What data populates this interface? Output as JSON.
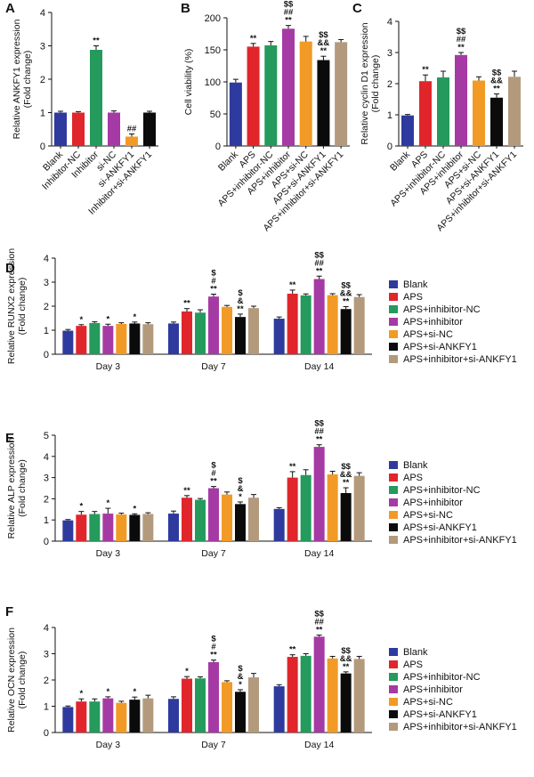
{
  "colors": {
    "Blank": "#2e3a9e",
    "APS": "#e0262b",
    "APS+inhibitor-NC": "#249a5c",
    "APS+inhibitor": "#a63aa5",
    "APS+si-NC": "#f29a26",
    "APS+si-ANKFY1": "#0b0b0b",
    "APS+inhibitor+si-ANKFY1": "#b39a7c",
    "Inhibitor-NC": "#e0262b",
    "Inhibitor": "#249a5c",
    "si-NC": "#a63aa5",
    "si-ANKFY1": "#f29a26",
    "Inhibitor+si-ANKFY1": "#0b0b0b"
  },
  "chart_data": [
    {
      "id": "A",
      "type": "bar",
      "panel_label": "A",
      "ylabel": [
        "Relative ANKFY1 expression",
        "(Fold change)"
      ],
      "ylim": [
        0,
        4
      ],
      "yticks": [
        "0",
        "1",
        "2",
        "3",
        "4"
      ],
      "categories": [
        "Blank",
        "Inhibitor-NC",
        "Inhibitor",
        "si-NC",
        "si-ANKFY1",
        "Inhibitor+si-ANKFY1"
      ],
      "values": [
        1.0,
        1.0,
        2.88,
        1.0,
        0.28,
        1.0
      ],
      "errors": [
        0.04,
        0.03,
        0.12,
        0.05,
        0.08,
        0.04
      ],
      "annotations": [
        "",
        "",
        "**",
        "",
        "##",
        ""
      ]
    },
    {
      "id": "B",
      "type": "bar",
      "panel_label": "B",
      "ylabel": [
        "Cell viability (%)"
      ],
      "ylim": [
        0,
        200
      ],
      "yticks": [
        "0",
        "50",
        "100",
        "150",
        "200"
      ],
      "categories": [
        "Blank",
        "APS",
        "APS+inhibitor-NC",
        "APS+inhibitor",
        "APS+si-NC",
        "APS+si-ANKFY1",
        "APS+inhibitor+si-ANKFY1"
      ],
      "values": [
        99,
        155,
        157,
        183,
        163,
        134,
        162
      ],
      "errors": [
        5,
        5,
        6,
        5,
        8,
        6,
        4
      ],
      "annotations": [
        "",
        "**",
        "",
        "$$\n##\n**",
        "",
        "$$\n&&\n**",
        ""
      ]
    },
    {
      "id": "C",
      "type": "bar",
      "panel_label": "C",
      "ylabel": [
        "Relative cyclin D1 expression",
        "(Fold change)"
      ],
      "ylim": [
        0,
        4
      ],
      "yticks": [
        "0",
        "1",
        "2",
        "3",
        "4"
      ],
      "categories": [
        "Blank",
        "APS",
        "APS+inhibitor-NC",
        "APS+inhibitor",
        "APS+si-NC",
        "APS+si-ANKFY1",
        "APS+inhibitor+si-ANKFY1"
      ],
      "values": [
        0.98,
        2.08,
        2.2,
        2.92,
        2.1,
        1.55,
        2.22
      ],
      "errors": [
        0.03,
        0.2,
        0.2,
        0.08,
        0.12,
        0.12,
        0.18
      ],
      "annotations": [
        "",
        "**",
        "",
        "$$\n##\n**",
        "",
        "$$\n&&\n**",
        ""
      ]
    },
    {
      "id": "D",
      "type": "bar",
      "panel_label": "D",
      "ylabel": [
        "Relative RUNX2 expression",
        "(Fold change)"
      ],
      "ylim": [
        0,
        4
      ],
      "yticks": [
        "0",
        "1",
        "2",
        "3",
        "4"
      ],
      "groups": [
        "Day 3",
        "Day 7",
        "Day 14"
      ],
      "series": [
        {
          "name": "Blank",
          "values": [
            0.98,
            1.28,
            1.48
          ],
          "errors": [
            0.05,
            0.06,
            0.07
          ],
          "annotations": [
            "",
            "",
            ""
          ]
        },
        {
          "name": "APS",
          "values": [
            1.18,
            1.78,
            2.52
          ],
          "errors": [
            0.05,
            0.12,
            0.15
          ],
          "annotations": [
            "*",
            "**",
            "**"
          ]
        },
        {
          "name": "APS+inhibitor-NC",
          "values": [
            1.3,
            1.73,
            2.45
          ],
          "errors": [
            0.05,
            0.12,
            0.06
          ],
          "annotations": [
            "",
            "",
            ""
          ]
        },
        {
          "name": "APS+inhibitor",
          "values": [
            1.18,
            2.4,
            3.13
          ],
          "errors": [
            0.07,
            0.1,
            0.12
          ],
          "annotations": [
            "*",
            "$\n#\n**",
            "$$\n##\n**"
          ]
        },
        {
          "name": "APS+si-NC",
          "values": [
            1.26,
            1.97,
            2.46
          ],
          "errors": [
            0.05,
            0.06,
            0.06
          ],
          "annotations": [
            "",
            "",
            ""
          ]
        },
        {
          "name": "APS+si-ANKFY1",
          "values": [
            1.28,
            1.55,
            1.88
          ],
          "errors": [
            0.06,
            0.12,
            0.1
          ],
          "annotations": [
            "*",
            "$\n&\n**",
            "$$\n&&\n**"
          ]
        },
        {
          "name": "APS+inhibitor+si-ANKFY1",
          "values": [
            1.25,
            1.92,
            2.38
          ],
          "errors": [
            0.06,
            0.08,
            0.1
          ],
          "annotations": [
            "",
            "",
            ""
          ]
        }
      ],
      "legend": [
        "Blank",
        "APS",
        "APS+inhibitor-NC",
        "APS+inhibitor",
        "APS+si-NC",
        "APS+si-ANKFY1",
        "APS+inhibitor+si-ANKFY1"
      ]
    },
    {
      "id": "E",
      "type": "bar",
      "panel_label": "E",
      "ylabel": [
        "Relative ALP expression",
        "(Fold change)"
      ],
      "ylim": [
        0,
        5
      ],
      "yticks": [
        "0",
        "1",
        "2",
        "3",
        "4",
        "5"
      ],
      "groups": [
        "Day 3",
        "Day 7",
        "Day 14"
      ],
      "series": [
        {
          "name": "Blank",
          "values": [
            0.98,
            1.3,
            1.52
          ],
          "errors": [
            0.04,
            0.12,
            0.06
          ],
          "annotations": [
            "",
            "",
            ""
          ]
        },
        {
          "name": "APS",
          "values": [
            1.25,
            2.05,
            3.0
          ],
          "errors": [
            0.15,
            0.1,
            0.28
          ],
          "annotations": [
            "*",
            "**",
            "**"
          ]
        },
        {
          "name": "APS+inhibitor-NC",
          "values": [
            1.28,
            1.95,
            3.12
          ],
          "errors": [
            0.12,
            0.06,
            0.25
          ],
          "annotations": [
            "",
            "",
            ""
          ]
        },
        {
          "name": "APS+inhibitor",
          "values": [
            1.3,
            2.5,
            4.45
          ],
          "errors": [
            0.25,
            0.08,
            0.1
          ],
          "annotations": [
            "*",
            "$\n#\n**",
            "$$\n##\n**"
          ]
        },
        {
          "name": "APS+si-NC",
          "values": [
            1.26,
            2.2,
            3.15
          ],
          "errors": [
            0.06,
            0.12,
            0.15
          ],
          "annotations": [
            "",
            "",
            ""
          ]
        },
        {
          "name": "APS+si-ANKFY1",
          "values": [
            1.24,
            1.75,
            2.27
          ],
          "errors": [
            0.05,
            0.1,
            0.25
          ],
          "annotations": [
            "*",
            "$\n&\n*",
            "$$\n&&\n**"
          ]
        },
        {
          "name": "APS+inhibitor+si-ANKFY1",
          "values": [
            1.28,
            2.05,
            3.08
          ],
          "errors": [
            0.06,
            0.15,
            0.15
          ],
          "annotations": [
            "",
            "",
            ""
          ]
        }
      ],
      "legend": [
        "Blank",
        "APS",
        "APS+inhibitor-NC",
        "APS+inhibitor",
        "APS+si-NC",
        "APS+si-ANKFY1",
        "APS+inhibitor+si-ANKFY1"
      ]
    },
    {
      "id": "F",
      "type": "bar",
      "panel_label": "F",
      "ylabel": [
        "Relative OCN expression",
        "(Fold change)"
      ],
      "ylim": [
        0,
        4
      ],
      "yticks": [
        "0",
        "1",
        "2",
        "3",
        "4"
      ],
      "groups": [
        "Day 3",
        "Day 7",
        "Day 14"
      ],
      "series": [
        {
          "name": "Blank",
          "values": [
            0.97,
            1.28,
            1.76
          ],
          "errors": [
            0.04,
            0.08,
            0.06
          ],
          "annotations": [
            "",
            "",
            ""
          ]
        },
        {
          "name": "APS",
          "values": [
            1.18,
            2.05,
            2.88
          ],
          "errors": [
            0.1,
            0.08,
            0.08
          ],
          "annotations": [
            "*",
            "*",
            "**"
          ]
        },
        {
          "name": "APS+inhibitor-NC",
          "values": [
            1.18,
            2.06,
            2.92
          ],
          "errors": [
            0.1,
            0.06,
            0.08
          ],
          "annotations": [
            "",
            "",
            ""
          ]
        },
        {
          "name": "APS+inhibitor",
          "values": [
            1.3,
            2.68,
            3.65
          ],
          "errors": [
            0.06,
            0.08,
            0.06
          ],
          "annotations": [
            "*",
            "$\n#\n**",
            "$$\n##\n**"
          ]
        },
        {
          "name": "APS+si-NC",
          "values": [
            1.13,
            1.92,
            2.82
          ],
          "errors": [
            0.06,
            0.05,
            0.08
          ],
          "annotations": [
            "",
            "",
            ""
          ]
        },
        {
          "name": "APS+si-ANKFY1",
          "values": [
            1.25,
            1.55,
            2.25
          ],
          "errors": [
            0.1,
            0.08,
            0.06
          ],
          "annotations": [
            "*",
            "$\n&\n*",
            "$$\n&&\n**"
          ]
        },
        {
          "name": "APS+inhibitor+si-ANKFY1",
          "values": [
            1.3,
            2.1,
            2.8
          ],
          "errors": [
            0.12,
            0.15,
            0.1
          ],
          "annotations": [
            "",
            "",
            ""
          ]
        }
      ],
      "legend": [
        "Blank",
        "APS",
        "APS+inhibitor-NC",
        "APS+inhibitor",
        "APS+si-NC",
        "APS+si-ANKFY1",
        "APS+inhibitor+si-ANKFY1"
      ]
    }
  ]
}
